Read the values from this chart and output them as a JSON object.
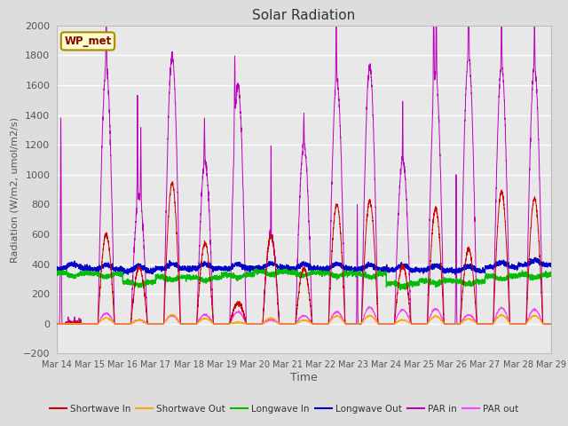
{
  "title": "Solar Radiation",
  "xlabel": "Time",
  "ylabel": "Radiation (W/m2, umol/m2/s)",
  "ylim": [
    -200,
    2000
  ],
  "yticks": [
    -200,
    0,
    200,
    400,
    600,
    800,
    1000,
    1200,
    1400,
    1600,
    1800,
    2000
  ],
  "fig_bg_color": "#dddddd",
  "plot_bg_color": "#e8e8e8",
  "grid_color": "#ffffff",
  "label_color": "#555555",
  "station_label": "WP_met",
  "station_box_color": "#ffffcc",
  "station_border_color": "#aa8800",
  "series": {
    "shortwave_in": {
      "label": "Shortwave In",
      "color": "#cc0000"
    },
    "shortwave_out": {
      "label": "Shortwave Out",
      "color": "#ffaa00"
    },
    "longwave_in": {
      "label": "Longwave In",
      "color": "#00bb00"
    },
    "longwave_out": {
      "label": "Longwave Out",
      "color": "#0000cc"
    },
    "par_in": {
      "label": "PAR in",
      "color": "#bb00bb"
    },
    "par_out": {
      "label": "PAR out",
      "color": "#ff44ff"
    }
  },
  "xtick_labels": [
    "Mar 14",
    "Mar 15",
    "Mar 16",
    "Mar 17",
    "Mar 18",
    "Mar 19",
    "Mar 20",
    "Mar 21",
    "Mar 22",
    "Mar 23",
    "Mar 24",
    "Mar 25",
    "Mar 26",
    "Mar 27",
    "Mar 28",
    "Mar 29"
  ],
  "n_days": 15,
  "pts_per_day": 288
}
